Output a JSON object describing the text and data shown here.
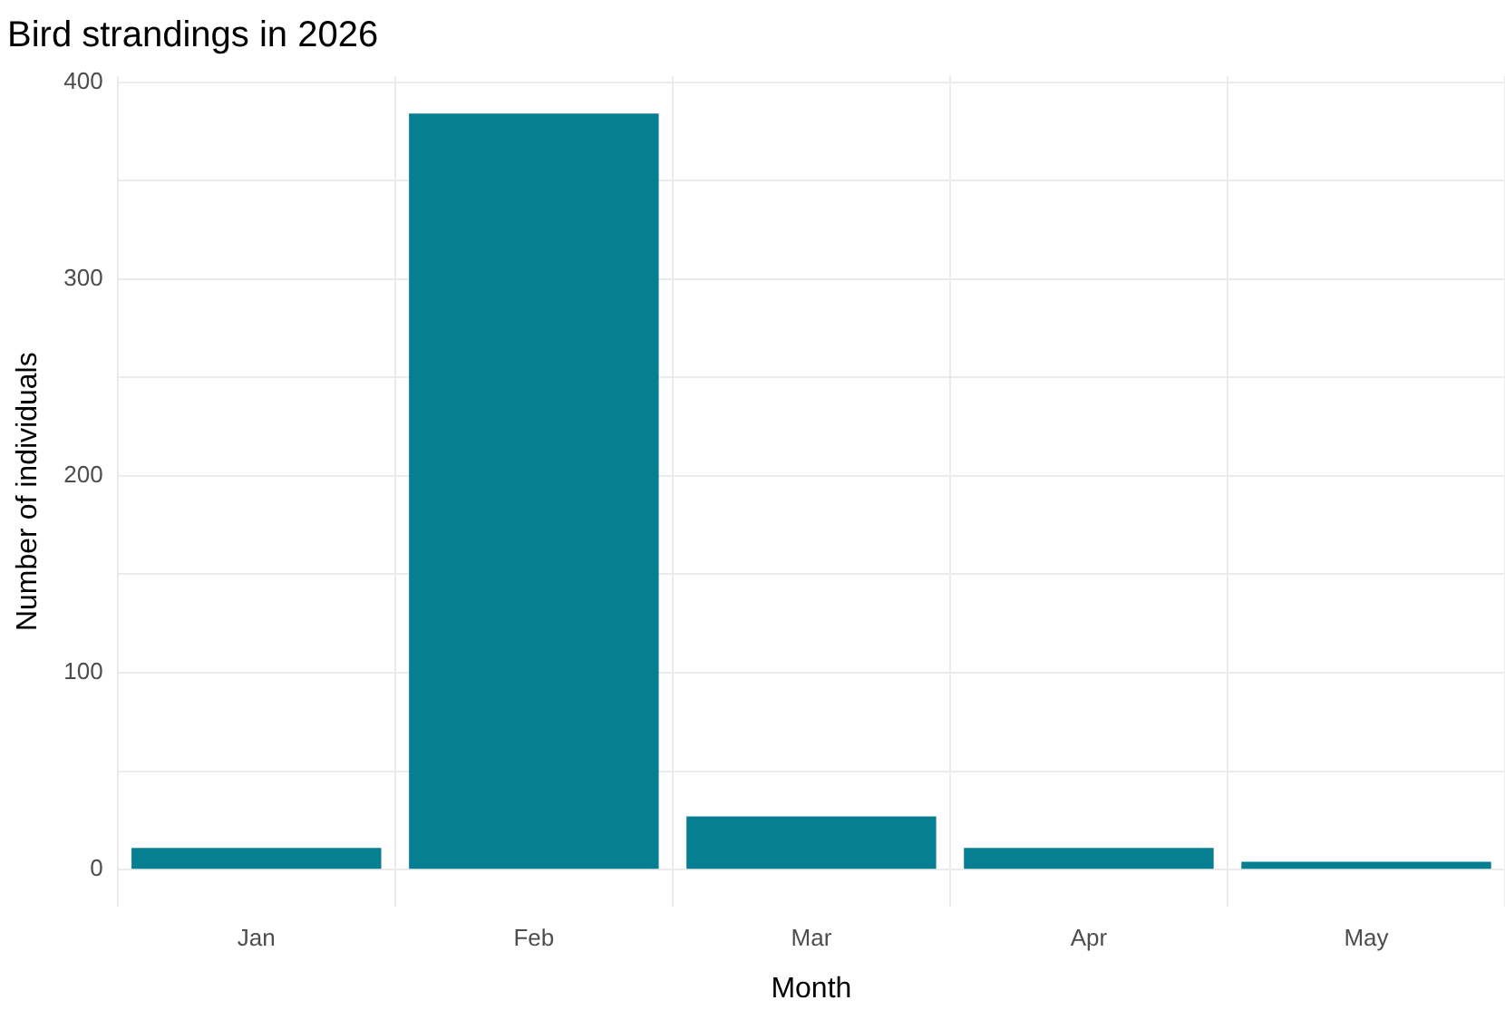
{
  "chart_data": {
    "type": "bar",
    "title": "Bird strandings in 2026",
    "xlabel": "Month",
    "ylabel": "Number of individuals",
    "categories": [
      "Jan",
      "Feb",
      "Mar",
      "Apr",
      "May"
    ],
    "values": [
      11,
      384,
      27,
      11,
      4
    ],
    "color": "#077f93",
    "ylim": [
      -19,
      403
    ],
    "yticks": [
      0,
      {
        "value": 50,
        "label": null
      },
      100,
      {
        "value": 150,
        "label": null
      },
      200,
      {
        "value": 250,
        "label": null
      },
      300,
      {
        "value": 350,
        "label": null
      },
      400
    ],
    "grid": true,
    "legend": false
  }
}
